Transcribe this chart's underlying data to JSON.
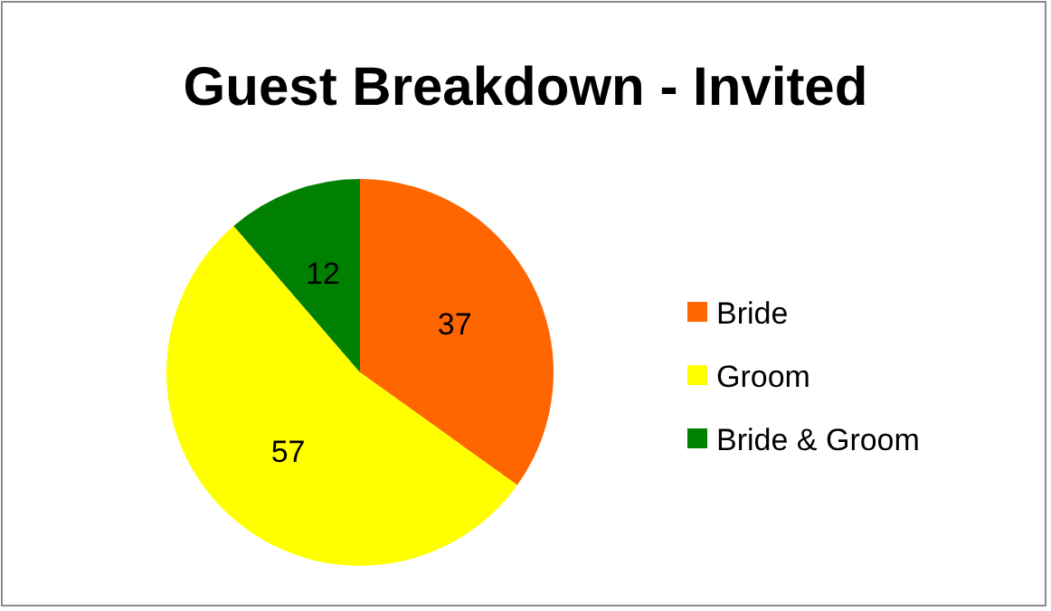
{
  "chart_data": {
    "type": "pie",
    "title": "Guest Breakdown - Invited",
    "categories": [
      "Bride",
      "Groom",
      "Bride & Groom"
    ],
    "values": [
      37,
      57,
      12
    ],
    "colors": [
      "#ff6600",
      "#ffff00",
      "#008000"
    ],
    "data_labels": true,
    "legend": "right"
  }
}
